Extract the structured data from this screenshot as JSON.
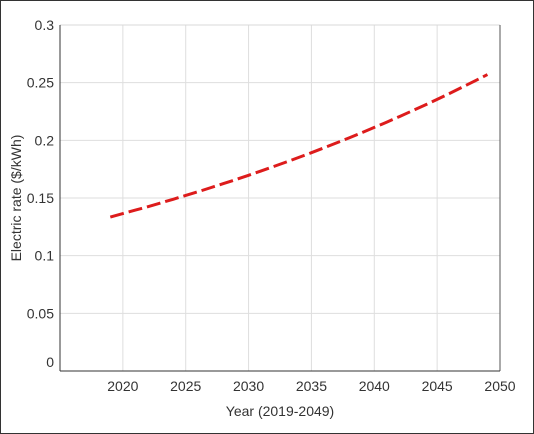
{
  "chart_data": {
    "type": "line",
    "title": "",
    "xlabel": "Year (2019-2049)",
    "ylabel": "Electric rate ($/kWh)",
    "xlim": [
      2015,
      2050
    ],
    "ylim": [
      0,
      0.3
    ],
    "x_ticks": [
      2020,
      2025,
      2030,
      2035,
      2040,
      2045,
      2050
    ],
    "y_ticks": [
      0,
      0.05,
      0.1,
      0.15,
      0.2,
      0.25,
      0.3
    ],
    "x_tick_labels": [
      "2020",
      "2025",
      "2030",
      "2035",
      "2040",
      "2045",
      "2050"
    ],
    "y_tick_labels": [
      "0",
      "0.05",
      "0.1",
      "0.15",
      "0.2",
      "0.25",
      "0.3"
    ],
    "grid": true,
    "legend": "none",
    "series": [
      {
        "color": "#dd1c1c",
        "line_style": "dashed",
        "x": [
          2019,
          2020,
          2021,
          2022,
          2023,
          2024,
          2025,
          2026,
          2027,
          2028,
          2029,
          2030,
          2031,
          2032,
          2033,
          2034,
          2035,
          2036,
          2037,
          2038,
          2039,
          2040,
          2041,
          2042,
          2043,
          2044,
          2045,
          2046,
          2047,
          2048,
          2049
        ],
        "values": [
          0.1335,
          0.1365,
          0.1395,
          0.1425,
          0.1457,
          0.1489,
          0.1522,
          0.1555,
          0.159,
          0.1625,
          0.166,
          0.1697,
          0.1735,
          0.1773,
          0.1812,
          0.1852,
          0.1893,
          0.1935,
          0.1978,
          0.2021,
          0.2066,
          0.2112,
          0.2158,
          0.2206,
          0.2255,
          0.2304,
          0.2355,
          0.2407,
          0.2461,
          0.2515,
          0.257
        ]
      }
    ]
  }
}
